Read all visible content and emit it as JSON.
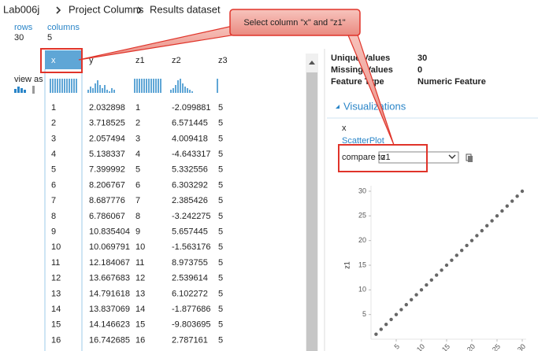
{
  "breadcrumb": [
    "Lab006j",
    "Project Columns",
    "Results dataset"
  ],
  "summary": {
    "rows_label": "rows",
    "rows": 30,
    "columns_label": "columns",
    "columns": 5
  },
  "view_as": "view as",
  "table": {
    "headers": [
      "x",
      "y",
      "z1",
      "z2",
      "z3"
    ],
    "rows": [
      [
        1,
        2.032898,
        1,
        -2.099881,
        5
      ],
      [
        2,
        3.718525,
        2,
        6.571445,
        5
      ],
      [
        3,
        2.057494,
        3,
        4.009418,
        5
      ],
      [
        4,
        5.138337,
        4,
        -4.643317,
        5
      ],
      [
        5,
        7.399992,
        5,
        5.332556,
        5
      ],
      [
        6,
        8.206767,
        6,
        6.303292,
        5
      ],
      [
        7,
        8.687776,
        7,
        2.385426,
        5
      ],
      [
        8,
        6.786067,
        8,
        -3.242275,
        5
      ],
      [
        9,
        10.835404,
        9,
        5.657445,
        5
      ],
      [
        10,
        10.069791,
        10,
        -1.563176,
        5
      ],
      [
        11,
        12.184067,
        11,
        8.973755,
        5
      ],
      [
        12,
        13.667683,
        12,
        2.539614,
        5
      ],
      [
        13,
        14.791618,
        13,
        6.102272,
        5
      ],
      [
        14,
        13.837069,
        14,
        -1.877686,
        5
      ],
      [
        15,
        14.146623,
        15,
        -9.803695,
        5
      ],
      [
        16,
        16.742685,
        16,
        2.787161,
        5
      ]
    ]
  },
  "statistics": [
    {
      "label": "Unique Values",
      "value": 30
    },
    {
      "label": "Missing Values",
      "value": 0
    },
    {
      "label": "Feature Type",
      "value": "Numeric Feature"
    }
  ],
  "visualizations": {
    "title": "Visualizations",
    "column": "x",
    "link": "ScatterPlot",
    "compare_label": "compare to",
    "compare_value": "z1"
  },
  "scatter": {
    "type": "scatter",
    "ylabel": "z1",
    "x": [
      1,
      2,
      3,
      4,
      5,
      6,
      7,
      8,
      9,
      10,
      11,
      12,
      13,
      14,
      15,
      16,
      17,
      18,
      19,
      20,
      21,
      22,
      23,
      24,
      25,
      26,
      27,
      28,
      29,
      30
    ],
    "y": [
      1,
      2,
      3,
      4,
      5,
      6,
      7,
      8,
      9,
      10,
      11,
      12,
      13,
      14,
      15,
      16,
      17,
      18,
      19,
      20,
      21,
      22,
      23,
      24,
      25,
      26,
      27,
      28,
      29,
      30
    ],
    "xlim": [
      0,
      30
    ],
    "ylim": [
      0,
      30
    ],
    "xticks": [
      5,
      10,
      15,
      20,
      25,
      30
    ],
    "yticks": [
      5,
      10,
      15,
      20,
      25,
      30
    ],
    "color": "#666666"
  },
  "callout": "Select column \"x\" and \"z1\""
}
